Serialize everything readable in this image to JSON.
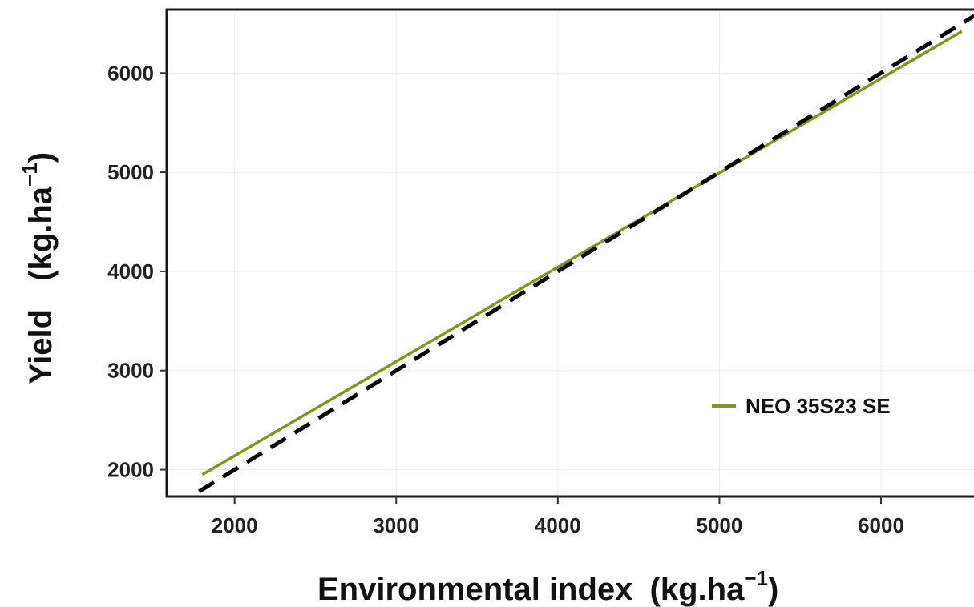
{
  "chart_data": {
    "type": "line",
    "xlabel": "Environmental index",
    "ylabel": "Yield",
    "unit_main": "kg.ha",
    "unit_exp": "−1",
    "xlim": [
      1580,
      6640
    ],
    "ylim": [
      1730,
      6640
    ],
    "x_ticks": [
      2000,
      3000,
      4000,
      5000,
      6000
    ],
    "y_ticks": [
      2000,
      3000,
      4000,
      5000,
      6000
    ],
    "x_tick_labels": [
      "2000",
      "3000",
      "4000",
      "5000",
      "6000"
    ],
    "y_tick_labels": [
      "2000",
      "3000",
      "4000",
      "5000",
      "6000"
    ],
    "grid": true,
    "legend_position": "bottom-right",
    "series": [
      {
        "name": "NEO 35S23 SE",
        "color": "#7a9a1a",
        "style": "solid",
        "x": [
          1800,
          6500
        ],
        "y": [
          1950,
          6420
        ]
      },
      {
        "color": "#000000",
        "style": "dashed",
        "x": [
          1780,
          6640
        ],
        "y": [
          1780,
          6640
        ]
      }
    ]
  }
}
